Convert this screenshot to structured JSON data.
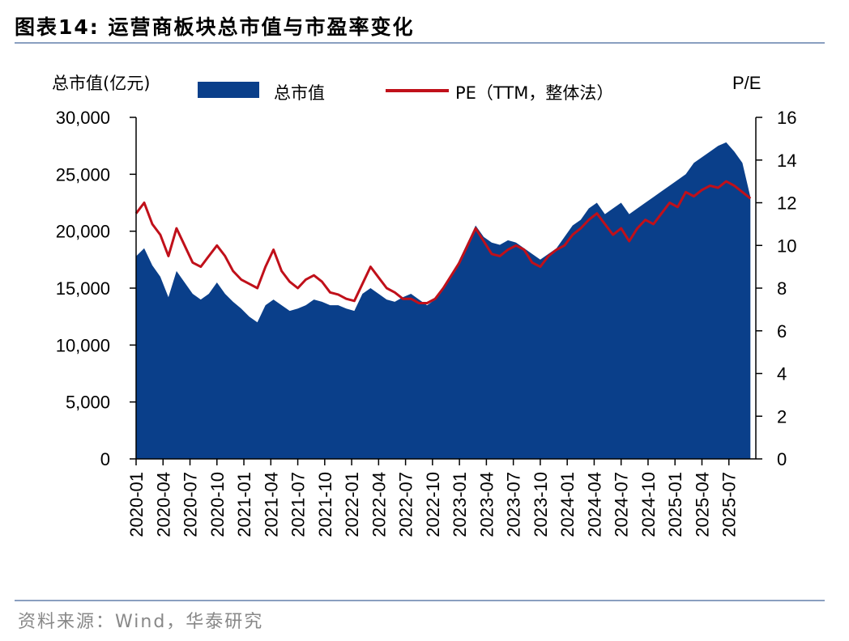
{
  "title": "图表14:   运营商板块总市值与市盈率变化",
  "source": "资料来源：Wind，华泰研究",
  "colors": {
    "area": "#0a3f8a",
    "line": "#c0101a",
    "rule": "#8a9fc0"
  },
  "chart_data": {
    "type": "area",
    "left_axis_label": "总市值(亿元)",
    "right_axis_label": "P/E",
    "legend": [
      {
        "name": "总市值",
        "kind": "area"
      },
      {
        "name": "PE（TTM，整体法）",
        "kind": "line"
      }
    ],
    "y_left_range": [
      0,
      30000
    ],
    "y_left_ticks": [
      "0",
      "5,000",
      "10,000",
      "15,000",
      "20,000",
      "25,000",
      "30,000"
    ],
    "y_right_range": [
      0,
      16
    ],
    "y_right_ticks": [
      "0",
      "2",
      "4",
      "6",
      "8",
      "10",
      "12",
      "14",
      "16"
    ],
    "x_tick_labels": [
      "2020-01",
      "2020-04",
      "2020-07",
      "2020-10",
      "2021-01",
      "2021-04",
      "2021-07",
      "2021-10",
      "2022-01",
      "2022-04",
      "2022-07",
      "2022-10",
      "2023-01",
      "2023-04",
      "2023-07",
      "2023-10",
      "2024-01",
      "2024-04",
      "2024-07",
      "2024-10",
      "2025-01",
      "2025-04",
      "2025-07"
    ],
    "x_range_months": [
      0,
      23
    ],
    "market_cap": [
      [
        0,
        17800
      ],
      [
        0.3,
        18500
      ],
      [
        0.6,
        17000
      ],
      [
        0.9,
        16000
      ],
      [
        1.2,
        14200
      ],
      [
        1.5,
        16500
      ],
      [
        1.8,
        15500
      ],
      [
        2.1,
        14500
      ],
      [
        2.4,
        14000
      ],
      [
        2.7,
        14500
      ],
      [
        3.0,
        15500
      ],
      [
        3.3,
        14500
      ],
      [
        3.6,
        13800
      ],
      [
        3.9,
        13200
      ],
      [
        4.2,
        12500
      ],
      [
        4.5,
        12000
      ],
      [
        4.8,
        13500
      ],
      [
        5.1,
        14000
      ],
      [
        5.4,
        13500
      ],
      [
        5.7,
        13000
      ],
      [
        6.0,
        13200
      ],
      [
        6.3,
        13500
      ],
      [
        6.6,
        14000
      ],
      [
        6.9,
        13800
      ],
      [
        7.2,
        13500
      ],
      [
        7.5,
        13500
      ],
      [
        7.8,
        13200
      ],
      [
        8.1,
        13000
      ],
      [
        8.4,
        14500
      ],
      [
        8.7,
        15000
      ],
      [
        9.0,
        14500
      ],
      [
        9.3,
        14000
      ],
      [
        9.6,
        13800
      ],
      [
        9.9,
        14200
      ],
      [
        10.2,
        14500
      ],
      [
        10.5,
        14000
      ],
      [
        10.8,
        13500
      ],
      [
        11.1,
        14000
      ],
      [
        11.4,
        15000
      ],
      [
        11.7,
        16000
      ],
      [
        12.0,
        17500
      ],
      [
        12.3,
        19000
      ],
      [
        12.6,
        20500
      ],
      [
        12.9,
        19500
      ],
      [
        13.2,
        19000
      ],
      [
        13.5,
        18800
      ],
      [
        13.8,
        19200
      ],
      [
        14.1,
        19000
      ],
      [
        14.4,
        18500
      ],
      [
        14.7,
        18000
      ],
      [
        15.0,
        17500
      ],
      [
        15.3,
        18000
      ],
      [
        15.6,
        18500
      ],
      [
        15.9,
        19500
      ],
      [
        16.2,
        20500
      ],
      [
        16.5,
        21000
      ],
      [
        16.8,
        22000
      ],
      [
        17.1,
        22500
      ],
      [
        17.4,
        21500
      ],
      [
        17.7,
        22000
      ],
      [
        18.0,
        22500
      ],
      [
        18.3,
        21500
      ],
      [
        18.6,
        22000
      ],
      [
        18.9,
        22500
      ],
      [
        19.2,
        23000
      ],
      [
        19.5,
        23500
      ],
      [
        19.8,
        24000
      ],
      [
        20.1,
        24500
      ],
      [
        20.4,
        25000
      ],
      [
        20.7,
        26000
      ],
      [
        21.0,
        26500
      ],
      [
        21.3,
        27000
      ],
      [
        21.6,
        27500
      ],
      [
        21.9,
        27800
      ],
      [
        22.2,
        27000
      ],
      [
        22.5,
        26000
      ],
      [
        22.8,
        23000
      ]
    ],
    "pe": [
      [
        0,
        11.5
      ],
      [
        0.3,
        12.0
      ],
      [
        0.6,
        11.0
      ],
      [
        0.9,
        10.5
      ],
      [
        1.2,
        9.5
      ],
      [
        1.5,
        10.8
      ],
      [
        1.8,
        10.0
      ],
      [
        2.1,
        9.2
      ],
      [
        2.4,
        9.0
      ],
      [
        2.7,
        9.5
      ],
      [
        3.0,
        10.0
      ],
      [
        3.3,
        9.5
      ],
      [
        3.6,
        8.8
      ],
      [
        3.9,
        8.4
      ],
      [
        4.2,
        8.2
      ],
      [
        4.5,
        8.0
      ],
      [
        4.8,
        9.0
      ],
      [
        5.1,
        9.8
      ],
      [
        5.4,
        8.8
      ],
      [
        5.7,
        8.3
      ],
      [
        6.0,
        8.0
      ],
      [
        6.3,
        8.4
      ],
      [
        6.6,
        8.6
      ],
      [
        6.9,
        8.3
      ],
      [
        7.2,
        7.8
      ],
      [
        7.5,
        7.7
      ],
      [
        7.8,
        7.5
      ],
      [
        8.1,
        7.4
      ],
      [
        8.4,
        8.2
      ],
      [
        8.7,
        9.0
      ],
      [
        9.0,
        8.5
      ],
      [
        9.3,
        8.0
      ],
      [
        9.6,
        7.8
      ],
      [
        9.9,
        7.5
      ],
      [
        10.2,
        7.5
      ],
      [
        10.5,
        7.3
      ],
      [
        10.8,
        7.3
      ],
      [
        11.1,
        7.5
      ],
      [
        11.4,
        8.0
      ],
      [
        11.7,
        8.6
      ],
      [
        12.0,
        9.2
      ],
      [
        12.3,
        10.0
      ],
      [
        12.6,
        10.8
      ],
      [
        12.9,
        10.2
      ],
      [
        13.2,
        9.6
      ],
      [
        13.5,
        9.5
      ],
      [
        13.8,
        9.8
      ],
      [
        14.1,
        10.0
      ],
      [
        14.4,
        9.8
      ],
      [
        14.7,
        9.2
      ],
      [
        15.0,
        9.0
      ],
      [
        15.3,
        9.5
      ],
      [
        15.6,
        9.8
      ],
      [
        15.9,
        10.0
      ],
      [
        16.2,
        10.5
      ],
      [
        16.5,
        10.8
      ],
      [
        16.8,
        11.2
      ],
      [
        17.1,
        11.5
      ],
      [
        17.4,
        11.0
      ],
      [
        17.7,
        10.5
      ],
      [
        18.0,
        10.8
      ],
      [
        18.3,
        10.2
      ],
      [
        18.6,
        10.8
      ],
      [
        18.9,
        11.2
      ],
      [
        19.2,
        11.0
      ],
      [
        19.5,
        11.5
      ],
      [
        19.8,
        12.0
      ],
      [
        20.1,
        11.8
      ],
      [
        20.4,
        12.5
      ],
      [
        20.7,
        12.3
      ],
      [
        21.0,
        12.6
      ],
      [
        21.3,
        12.8
      ],
      [
        21.6,
        12.7
      ],
      [
        21.9,
        13.0
      ],
      [
        22.2,
        12.8
      ],
      [
        22.5,
        12.5
      ],
      [
        22.8,
        12.2
      ]
    ]
  }
}
